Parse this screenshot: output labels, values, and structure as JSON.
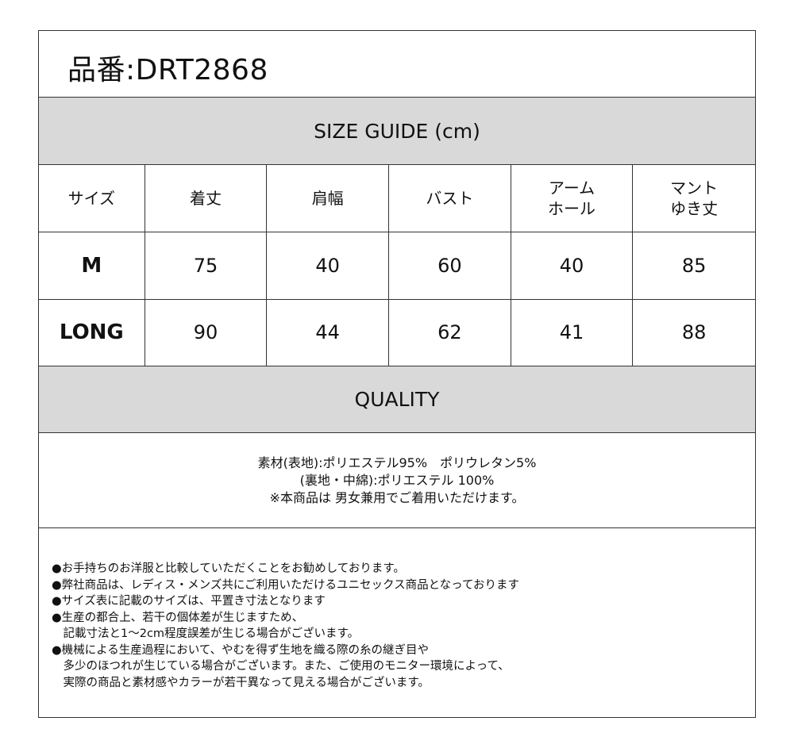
{
  "product_number": "品番:DRT2868",
  "size_guide_title": "SIZE GUIDE (cm)",
  "table": {
    "headers": [
      "サイズ",
      "着丈",
      "肩幅",
      "バスト",
      "アーム\nホール",
      "マント\nゆき丈"
    ],
    "rows": [
      {
        "size": "M",
        "values": [
          "75",
          "40",
          "60",
          "40",
          "85"
        ]
      },
      {
        "size": "LONG",
        "values": [
          "90",
          "44",
          "62",
          "41",
          "88"
        ]
      }
    ]
  },
  "quality_title": "QUALITY",
  "quality_lines": [
    "素材(表地):ポリエステル95%　ポリウレタン5%",
    "(裏地・中綿):ポリエステル 100%",
    "※本商品は 男女兼用でご着用いただけます。"
  ],
  "notes": [
    "●お手持ちのお洋服と比較していただくことをお勧めしております。",
    "●弊社商品は、レディス・メンズ共にご利用いただけるユニセックス商品となっております",
    "●サイズ表に記載のサイズは、平置き寸法となります",
    "●生産の都合上、若干の個体差が生じますため、",
    "　記載寸法と1～2cm程度誤差が生じる場合がございます。",
    "●機械による生産過程において、やむを得ず生地を織る際の糸の継ぎ目や",
    "　多少のほつれが生じている場合がございます。また、ご使用のモニター環境によって、",
    "　実際の商品と素材感やカラーが若干異なって見える場合がございます。"
  ],
  "colors": {
    "section_bg": "#d9d9d9",
    "border": "#333333"
  }
}
